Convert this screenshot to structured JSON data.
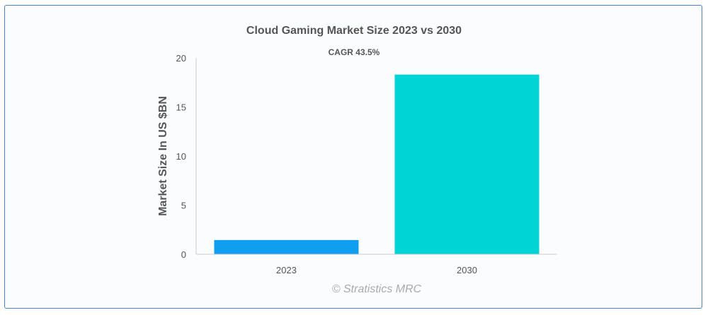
{
  "chart_data": {
    "type": "bar",
    "title": "Cloud Gaming Market Size 2023 vs 2030",
    "subtitle": "CAGR 43.5%",
    "ylabel": "Market Size In US $BN",
    "xlabel": "",
    "categories": [
      "2023",
      "2030"
    ],
    "values": [
      1.45,
      18.3
    ],
    "colors": [
      "#109ff0",
      "#00d4d4"
    ],
    "ylim": [
      0,
      20
    ],
    "yticks": [
      0,
      5,
      10,
      15,
      20
    ],
    "grid": false,
    "legend": "none"
  },
  "watermark": "© Stratistics MRC"
}
